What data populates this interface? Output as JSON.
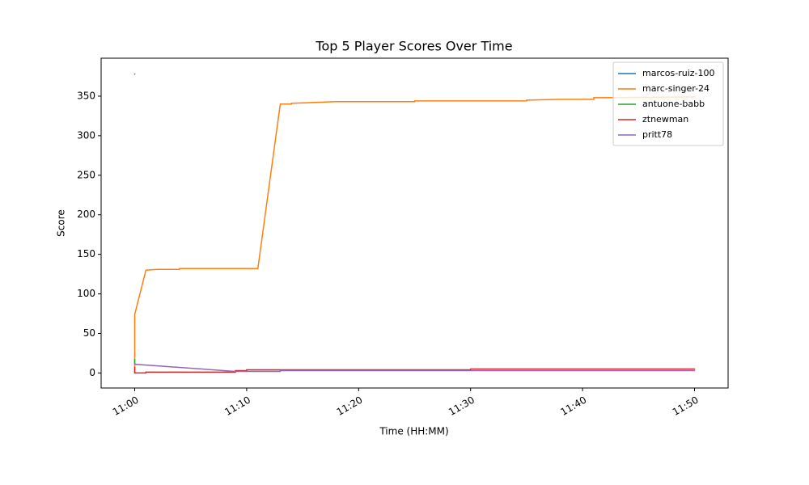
{
  "chart_data": {
    "type": "line",
    "title": "Top 5 Player Scores Over Time",
    "x_label": "Time (HH:MM)",
    "y_label": "Score",
    "xlim": [
      "10:57",
      "11:53"
    ],
    "xticks": [
      "11:00",
      "11:10",
      "11:20",
      "11:30",
      "11:40",
      "11:50"
    ],
    "ylim": [
      -19,
      398
    ],
    "yticks": [
      0,
      50,
      100,
      150,
      200,
      250,
      300,
      350
    ],
    "legend": "upper right",
    "series": [
      {
        "name": "marcos-ruiz-100",
        "color": "#1f77b4",
        "x": [
          "11:00",
          "11:00"
        ],
        "values": [
          378,
          378
        ]
      },
      {
        "name": "marc-singer-24",
        "color": "#ff7f0e",
        "x": [
          "11:00",
          "11:00",
          "11:00",
          "11:01",
          "11:02",
          "11:04",
          "11:04",
          "11:11",
          "11:13",
          "11:14",
          "11:14",
          "11:16",
          "11:18",
          "11:25",
          "11:25",
          "11:35",
          "11:35",
          "11:38",
          "11:41",
          "11:41",
          "11:50"
        ],
        "values": [
          0,
          74,
          74,
          130,
          131,
          131,
          132,
          132,
          340,
          340,
          341,
          342,
          343,
          343,
          344,
          344,
          345,
          346,
          346,
          348,
          349
        ]
      },
      {
        "name": "antuone-babb",
        "color": "#2ca02c",
        "x": [
          "11:00",
          "11:00"
        ],
        "values": [
          17,
          12
        ]
      },
      {
        "name": "ztnewman",
        "color": "#d62728",
        "x": [
          "11:00",
          "11:00",
          "11:01",
          "11:01",
          "11:09",
          "11:09",
          "11:10",
          "11:10",
          "11:30",
          "11:30",
          "11:50"
        ],
        "values": [
          7,
          0,
          0,
          1,
          1,
          3,
          3,
          4,
          4,
          5,
          5
        ]
      },
      {
        "name": "pritt78",
        "color": "#9467bd",
        "x": [
          "11:00",
          "11:09",
          "11:13",
          "11:13",
          "11:50"
        ],
        "values": [
          11,
          2,
          2,
          3,
          3
        ]
      }
    ]
  }
}
